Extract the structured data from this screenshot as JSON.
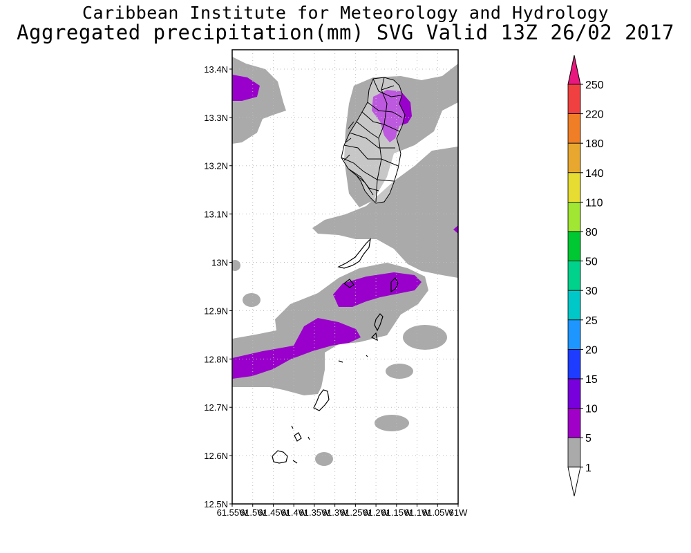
{
  "title_line1": "Caribbean Institute for Meteorology and Hydrology",
  "title_line2": "Aggregated precipitation(mm) SVG Valid 13Z 26/02 2017",
  "map": {
    "lat_labels": [
      "13.4N",
      "13.3N",
      "13.2N",
      "13.1N",
      "13N",
      "12.9N",
      "12.8N",
      "12.7N",
      "12.6N",
      "12.5N"
    ],
    "lon_labels": [
      "61.55W",
      "61.5W",
      "61.45W",
      "61.4W",
      "61.35W",
      "61.3W",
      "61.25W",
      "61.2W",
      "61.15W",
      "61.1W",
      "61.05W",
      "61W"
    ],
    "lat_range": [
      12.5,
      13.44
    ],
    "lon_range": [
      -61.55,
      -61.0
    ],
    "gray_color": "#aaaaaa",
    "purple_color": "#9a00cc"
  },
  "colorbar": {
    "labels": [
      "250",
      "220",
      "180",
      "140",
      "110",
      "80",
      "50",
      "30",
      "25",
      "20",
      "15",
      "10",
      "5",
      "1"
    ],
    "colors": [
      "#e8187e",
      "#f04040",
      "#f07e26",
      "#e8a830",
      "#e6dc32",
      "#a0e632",
      "#00c832",
      "#00d28c",
      "#00c8c8",
      "#1e96ff",
      "#1e3cff",
      "#7800dc",
      "#a000c8",
      "#aaaaaa",
      "#ffffff"
    ]
  }
}
